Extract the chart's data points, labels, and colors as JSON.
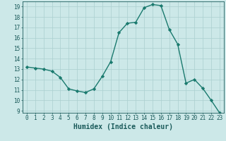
{
  "x": [
    0,
    1,
    2,
    3,
    4,
    5,
    6,
    7,
    8,
    9,
    10,
    11,
    12,
    13,
    14,
    15,
    16,
    17,
    18,
    19,
    20,
    21,
    22,
    23
  ],
  "y": [
    13.2,
    13.1,
    13.0,
    12.8,
    12.2,
    11.1,
    10.9,
    10.75,
    11.1,
    12.3,
    13.7,
    16.5,
    17.4,
    17.5,
    18.9,
    19.2,
    19.1,
    16.8,
    15.4,
    11.65,
    12.0,
    11.15,
    10.0,
    8.8
  ],
  "line_color": "#1a7a6e",
  "marker": "D",
  "markersize": 2.2,
  "linewidth": 1.0,
  "bg_color": "#cce8e8",
  "grid_color": "#aacfcf",
  "xlabel": "Humidex (Indice chaleur)",
  "xlim": [
    -0.5,
    23.5
  ],
  "ylim": [
    8.8,
    19.5
  ],
  "yticks": [
    9,
    10,
    11,
    12,
    13,
    14,
    15,
    16,
    17,
    18,
    19
  ],
  "xticks": [
    0,
    1,
    2,
    3,
    4,
    5,
    6,
    7,
    8,
    9,
    10,
    11,
    12,
    13,
    14,
    15,
    16,
    17,
    18,
    19,
    20,
    21,
    22,
    23
  ],
  "tick_fontsize": 5.5,
  "label_fontsize": 7.0,
  "text_color": "#1a5a5a"
}
